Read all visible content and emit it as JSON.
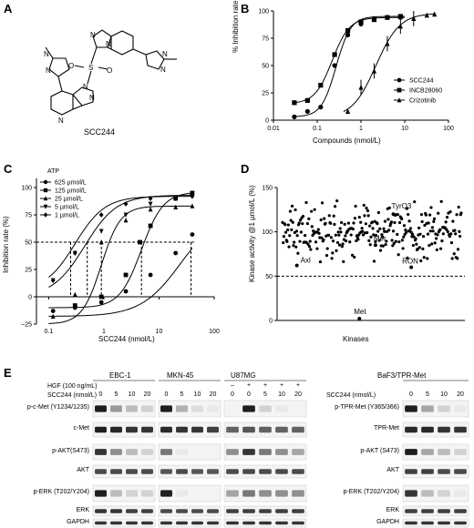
{
  "panels": {
    "A": {
      "letter": "A",
      "compound": "SCC244"
    },
    "B": {
      "letter": "B",
      "xlabel": "Compounds (nmol/L)",
      "ylabel": "% Inhibition rate",
      "legend": [
        "SCC244",
        "INCB28060",
        "Crizotinib"
      ]
    },
    "C": {
      "letter": "C",
      "xlabel": "SCC244 (nmol/L)",
      "ylabel": "Inhibition rate (%)",
      "legend_title": "ATP",
      "legend": [
        "625 µmol/L",
        "125 µmol/L",
        "25 µmol/L",
        "5 µmol/L",
        "1 µmol/L"
      ]
    },
    "D": {
      "letter": "D",
      "xlabel": "Kinases",
      "ylabel": "Kinase activity @1 µmol/L (%)",
      "annotations": [
        "TyrO3",
        "Mer",
        "Axl",
        "RON",
        "Met"
      ]
    },
    "E": {
      "letter": "E",
      "cell_lines": [
        "EBC-1",
        "MKN-45",
        "U87MG",
        "BaF3/TPR-Met"
      ],
      "hgf_label": "HGF (100 ng/mL)",
      "scc_label": "SCC244 (nmol/L)",
      "scc_label_right": "SCC244 (nmol/L)",
      "doses": [
        "0",
        "5",
        "10",
        "20"
      ],
      "u87_hgf": [
        "–",
        "+",
        "+",
        "+",
        "+"
      ],
      "u87_doses": [
        "0",
        "0",
        "5",
        "10",
        "20"
      ],
      "rows_left": [
        "p-c-Met (Y1234/1235)",
        "c-Met",
        "p-AKT(S473)",
        "AKT",
        "p-ERK (T202/Y204)",
        "ERK",
        "GAPDH"
      ],
      "rows_right": [
        "p-TPR-Met (Y365/366)",
        "TPR-Met",
        "p-AKT (S473)",
        "AKT",
        "p-ERK (T202/Y204)",
        "ERK",
        "GAPDH"
      ]
    }
  },
  "chart_data": [
    {
      "type": "line",
      "panel": "B",
      "xlabel": "Compounds (nmol/L)",
      "ylabel": "% Inhibition rate",
      "xscale": "log",
      "xlim": [
        0.01,
        100
      ],
      "ylim": [
        0,
        100
      ],
      "xticks": [
        "0.01",
        "0.1",
        "1",
        "10",
        "100"
      ],
      "yticks": [
        "0",
        "25",
        "50",
        "75",
        "100"
      ],
      "legend_position": "bottom-right",
      "series": [
        {
          "name": "SCC244",
          "marker": "circle",
          "x": [
            0.03,
            0.06,
            0.12,
            0.25,
            0.5,
            1,
            2,
            4,
            8
          ],
          "y": [
            3,
            8,
            12,
            50,
            78,
            88,
            93,
            94,
            94
          ]
        },
        {
          "name": "INCB28060",
          "marker": "square",
          "x": [
            0.03,
            0.06,
            0.12,
            0.25,
            0.5,
            1,
            2,
            4,
            8
          ],
          "y": [
            16,
            18,
            32,
            60,
            82,
            90,
            92,
            94,
            95
          ]
        },
        {
          "name": "Crizotinib",
          "marker": "triangle",
          "x": [
            0.5,
            1,
            2,
            4,
            8,
            16,
            32,
            48
          ],
          "y": [
            8,
            30,
            45,
            70,
            86,
            93,
            96,
            97
          ]
        }
      ]
    },
    {
      "type": "line",
      "panel": "C",
      "xlabel": "SCC244 (nmol/L)",
      "ylabel": "Inhibition rate (%)",
      "xscale": "log",
      "xlim": [
        0.06,
        100
      ],
      "ylim": [
        -25,
        100
      ],
      "xticks": [
        "0.1",
        "1",
        "10",
        "100"
      ],
      "yticks": [
        "–25",
        "0",
        "25",
        "50",
        "75",
        "100"
      ],
      "legend_title": "ATP",
      "legend_position": "top-left",
      "reference_line_y": 50,
      "series": [
        {
          "name": "625 µmol/L",
          "marker": "circle",
          "x": [
            0.12,
            0.3,
            0.9,
            2.5,
            7,
            20,
            40
          ],
          "y": [
            -13,
            -10,
            -5,
            5,
            20,
            40,
            57
          ]
        },
        {
          "name": "125 µmol/L",
          "marker": "square",
          "x": [
            0.3,
            0.9,
            2.5,
            4.5,
            7,
            20,
            40
          ],
          "y": [
            -8,
            0,
            20,
            50,
            65,
            90,
            95
          ]
        },
        {
          "name": "25 µmol/L",
          "marker": "triangle",
          "x": [
            0.12,
            0.3,
            0.9,
            2.5,
            7,
            20,
            40
          ],
          "y": [
            -18,
            2,
            50,
            70,
            80,
            82,
            83
          ]
        },
        {
          "name": "5 µmol/L",
          "marker": "triangle-down",
          "x": [
            0.12,
            0.3,
            0.9,
            2.5,
            7,
            20,
            40
          ],
          "y": [
            15,
            40,
            60,
            75,
            85,
            90,
            92
          ]
        },
        {
          "name": "1 µmol/L",
          "marker": "diamond",
          "x": [
            0.12,
            0.3,
            0.9,
            2.5,
            7,
            20,
            40
          ],
          "y": [
            15,
            40,
            75,
            85,
            90,
            90,
            92
          ]
        }
      ]
    },
    {
      "type": "scatter",
      "panel": "D",
      "xlabel": "Kinases",
      "ylabel": "Kinase activity @1 µmol/L (%)",
      "ylim": [
        0,
        150
      ],
      "yticks": [
        "0",
        "50",
        "100",
        "150"
      ],
      "reference_line_y": 50,
      "point_count": 280,
      "labeled_points": [
        {
          "label": "TyrO3",
          "x": 0.62,
          "y": 120
        },
        {
          "label": "Mer",
          "x": 0.52,
          "y": 85
        },
        {
          "label": "Axl",
          "x": 0.08,
          "y": 62
        },
        {
          "label": "RON",
          "x": 0.72,
          "y": 60
        },
        {
          "label": "Met",
          "x": 0.43,
          "y": 2
        }
      ]
    }
  ]
}
